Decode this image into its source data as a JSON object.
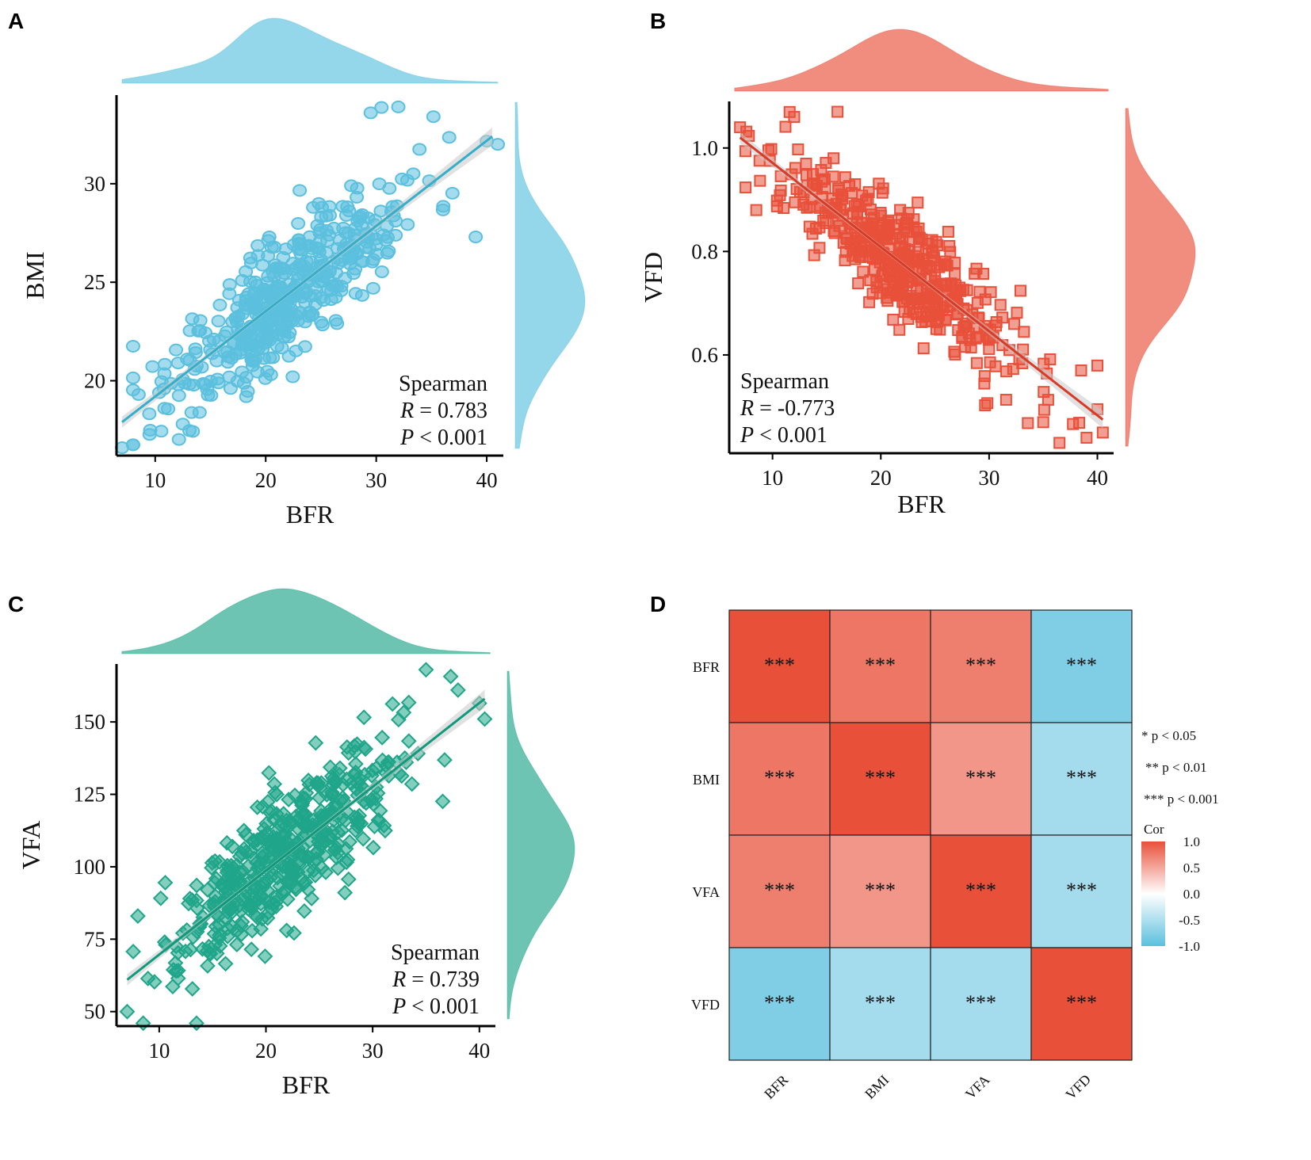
{
  "panels": {
    "A": {
      "letter": "A",
      "color": "#5BC0DE",
      "line_color": "#33AFCB",
      "marker": "circle",
      "xlabel": "BFR",
      "ylabel": "BMI",
      "xlim": [
        6.5,
        41.5
      ],
      "ylim": [
        16.2,
        34.5
      ],
      "xticks": [
        10,
        20,
        30,
        40
      ],
      "yticks": [
        20,
        25,
        30
      ],
      "fit": {
        "x0": 7,
        "y0": 17.9,
        "x1": 40.5,
        "y1": 32.4
      },
      "spearman_label": "Spearman",
      "r_label": "R",
      "r_value": "= 0.783",
      "p_label": "P",
      "p_value": "< 0.001",
      "outliers": [
        [
          7,
          16.6
        ],
        [
          29.5,
          33.6
        ],
        [
          32,
          33.9
        ],
        [
          41,
          32
        ],
        [
          39,
          27.3
        ],
        [
          12.5,
          17.8
        ],
        [
          8.5,
          19.3
        ]
      ]
    },
    "B": {
      "letter": "B",
      "color": "#E8503A",
      "line_color": "#D93A26",
      "marker": "square",
      "xlabel": "BFR",
      "ylabel": "VFD",
      "xlim": [
        6.0,
        41.5
      ],
      "ylim": [
        0.41,
        1.09
      ],
      "xticks": [
        10,
        20,
        30,
        40
      ],
      "yticks": [
        0.6,
        0.8,
        1.0
      ],
      "ytick_labels": [
        "0.6",
        "0.8",
        "1.0"
      ],
      "fit": {
        "x0": 7,
        "y0": 1.02,
        "x1": 40.5,
        "y1": 0.475
      },
      "spearman_label": "Spearman",
      "r_label": "R",
      "r_value": "= -0.773",
      "p_label": "P",
      "p_value": "< 0.001",
      "outliers": [
        [
          7,
          1.04
        ],
        [
          16,
          1.07
        ],
        [
          12,
          1.06
        ],
        [
          8.5,
          0.88
        ],
        [
          36.5,
          0.43
        ],
        [
          35,
          0.47
        ],
        [
          39,
          0.44
        ],
        [
          40.5,
          0.45
        ],
        [
          38.5,
          0.57
        ]
      ]
    },
    "C": {
      "letter": "C",
      "color": "#1FA589",
      "line_color": "#0E9A7C",
      "marker": "diamond",
      "xlabel": "BFR",
      "ylabel": "VFA",
      "xlim": [
        6.0,
        41.5
      ],
      "ylim": [
        45,
        170
      ],
      "xticks": [
        10,
        20,
        30,
        40
      ],
      "yticks": [
        50,
        75,
        100,
        125,
        150
      ],
      "fit": {
        "x0": 7,
        "y0": 61,
        "x1": 40.5,
        "y1": 158
      },
      "spearman_label": "Spearman",
      "r_label": "R",
      "r_value": "= 0.739",
      "p_label": "P",
      "p_value": "< 0.001",
      "outliers": [
        [
          7,
          50
        ],
        [
          8.5,
          46
        ],
        [
          13.5,
          46
        ],
        [
          35,
          168
        ],
        [
          38,
          161
        ],
        [
          40.5,
          151
        ],
        [
          8,
          83
        ]
      ]
    }
  },
  "heatmap": {
    "letter": "D",
    "rows": [
      "BFR",
      "BMI",
      "VFA",
      "VFD"
    ],
    "cols": [
      "BFR",
      "BMI",
      "VFA",
      "VFD"
    ],
    "values": [
      [
        1.0,
        0.783,
        0.739,
        -0.773
      ],
      [
        0.783,
        1.0,
        0.6,
        -0.55
      ],
      [
        0.739,
        0.6,
        1.0,
        -0.55
      ],
      [
        -0.773,
        -0.55,
        -0.55,
        1.0
      ]
    ],
    "stars": [
      [
        "***",
        "***",
        "***",
        "***"
      ],
      [
        "***",
        "***",
        "***",
        "***"
      ],
      [
        "***",
        "***",
        "***",
        "***"
      ],
      [
        "***",
        "***",
        "***",
        "***"
      ]
    ],
    "sig_legend": [
      "* p < 0.05",
      "** p < 0.01",
      "*** p < 0.001"
    ],
    "colorbar_title": "Cor",
    "colorbar_ticks": [
      "1.0",
      "0.5",
      "0.0",
      "-0.5",
      "-1.0"
    ],
    "color_low": "#5BC0DE",
    "color_mid": "#FFFFFF",
    "color_high": "#E8503A"
  },
  "chart_data": [
    {
      "type": "scatter",
      "title": "A",
      "xlabel": "BFR",
      "ylabel": "BMI",
      "xlim": [
        6.5,
        41.5
      ],
      "ylim": [
        16.2,
        34.5
      ],
      "spearman_r": 0.783,
      "p": "< 0.001",
      "fit": {
        "slope": 0.433,
        "intercept": 14.9
      }
    },
    {
      "type": "scatter",
      "title": "B",
      "xlabel": "BFR",
      "ylabel": "VFD",
      "xlim": [
        6.0,
        41.5
      ],
      "ylim": [
        0.41,
        1.09
      ],
      "spearman_r": -0.773,
      "p": "< 0.001",
      "fit": {
        "slope": -0.0163,
        "intercept": 1.134
      }
    },
    {
      "type": "scatter",
      "title": "C",
      "xlabel": "BFR",
      "ylabel": "VFA",
      "xlim": [
        6.0,
        41.5
      ],
      "ylim": [
        45,
        170
      ],
      "spearman_r": 0.739,
      "p": "< 0.001",
      "fit": {
        "slope": 2.9,
        "intercept": 40.7
      }
    },
    {
      "type": "heatmap",
      "title": "D",
      "categories": [
        "BFR",
        "BMI",
        "VFA",
        "VFD"
      ]
    }
  ]
}
